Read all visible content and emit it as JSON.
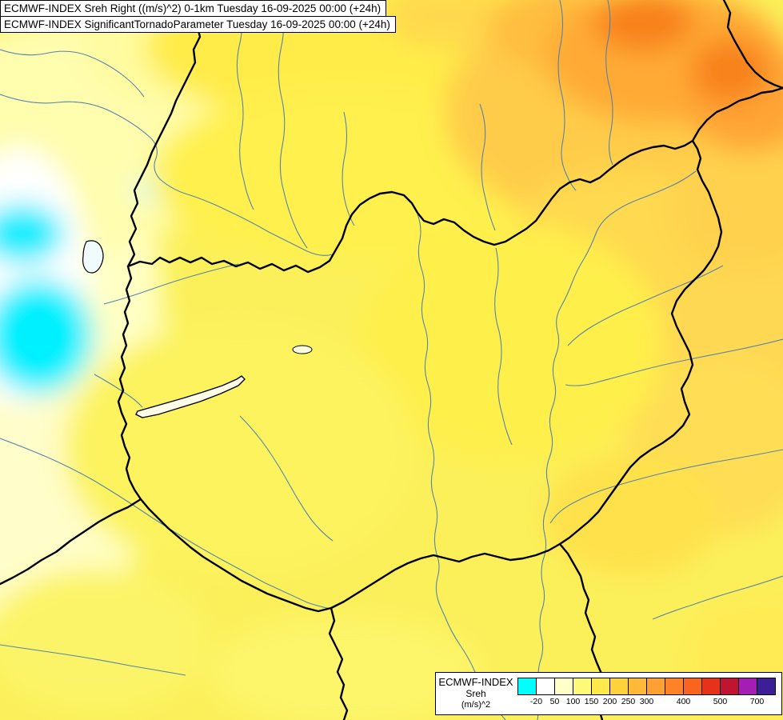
{
  "header": {
    "line1": "ECMWF-INDEX Sreh Right ((m/s)^2) 0-1km Tuesday 16-09-2025 00:00 (+24h)",
    "line2": "ECMWF-INDEX SignificantTornadoParameter Tuesday 16-09-2025 00:00 (+24h)"
  },
  "legend": {
    "model": "ECMWF-INDEX",
    "parameter": "Sreh",
    "units": "(m/s)^2",
    "cells": [
      {
        "color": "#00FFFF",
        "tick": "-20"
      },
      {
        "color": "#FFFFFF",
        "tick": "50"
      },
      {
        "color": "#FFFFC8",
        "tick": "100"
      },
      {
        "color": "#FFF978",
        "tick": "150"
      },
      {
        "color": "#FFE94B",
        "tick": "200"
      },
      {
        "color": "#FFD23C",
        "tick": "250"
      },
      {
        "color": "#FFB937",
        "tick": "300"
      },
      {
        "color": "#FFA032",
        "tick": ""
      },
      {
        "color": "#FF8226",
        "tick": "400"
      },
      {
        "color": "#FA641E",
        "tick": ""
      },
      {
        "color": "#E63219",
        "tick": "500"
      },
      {
        "color": "#C01432",
        "tick": ""
      },
      {
        "color": "#A51EB4",
        "tick": "700"
      },
      {
        "color": "#3C1E96",
        "tick": ""
      }
    ]
  },
  "map": {
    "base_color": "#FBF05A",
    "region_colors": {
      "cyan_low": "#00F0FF",
      "pale_white": "#FFFFFF",
      "pale_yellow": "#FFFFC4",
      "yellow": "#FFEC48",
      "gold": "#FFCC4A",
      "orange": "#FFAA35",
      "deep_orange": "#F8821C"
    },
    "border_color": "#000000",
    "river_color": "#4D7FAE"
  }
}
